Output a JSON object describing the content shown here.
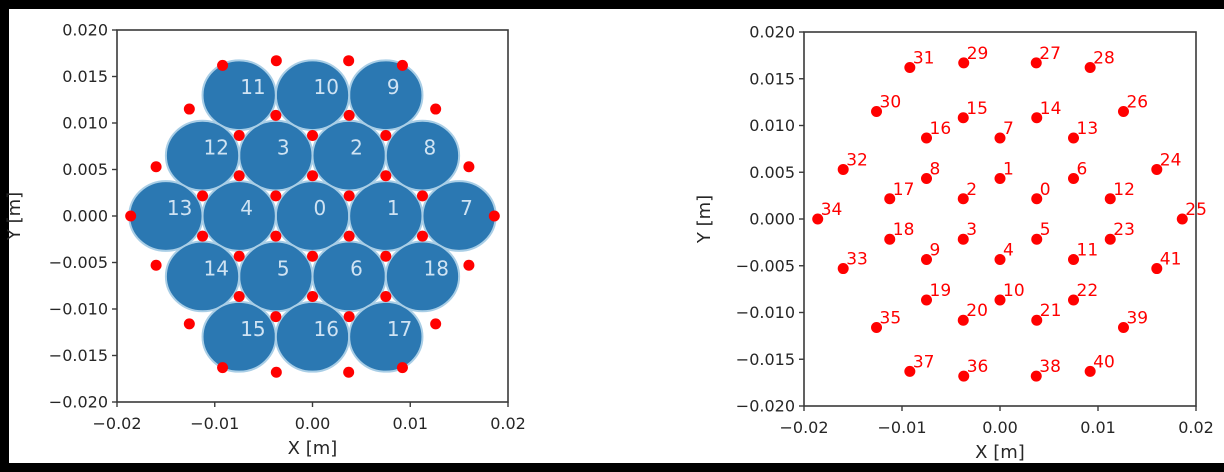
{
  "figure": {
    "background": "#ffffff",
    "border_color": "#000000",
    "axes_color": "#3a3a3a",
    "tick_text_color": "#262626"
  },
  "chart_data": [
    {
      "type": "scatter",
      "name": "circle-packing-plot",
      "title": "",
      "xlabel": "X [m]",
      "ylabel": "Y [m]",
      "xlim": [
        -0.02,
        0.02
      ],
      "ylim": [
        -0.02,
        0.02
      ],
      "grid": false,
      "legend": null,
      "xticks": [
        -0.02,
        -0.01,
        0.0,
        0.01,
        0.02
      ],
      "xtick_labels": [
        "−0.02",
        "−0.01",
        "0.00",
        "0.01",
        "0.02"
      ],
      "yticks": [
        0.02,
        0.015,
        0.01,
        0.005,
        0.0,
        -0.005,
        -0.01,
        -0.015,
        -0.02
      ],
      "ytick_labels": [
        "0.020",
        "0.015",
        "0.010",
        "0.005",
        "0.000",
        "−0.005",
        "−0.010",
        "−0.015",
        "−0.020"
      ],
      "series": [
        {
          "name": "hex-circles",
          "marker": "circle",
          "radius_m": 0.00375,
          "fill": "#2b78b2",
          "edge": "#a9cee6",
          "label_color": "#cfe3f3",
          "show_labels": true,
          "points": [
            {
              "label": "0",
              "x": 0.0,
              "y": 0.0
            },
            {
              "label": "1",
              "x": 0.0075,
              "y": 0.0
            },
            {
              "label": "2",
              "x": 0.00375,
              "y": 0.006495
            },
            {
              "label": "3",
              "x": -0.00375,
              "y": 0.006495
            },
            {
              "label": "4",
              "x": -0.0075,
              "y": 0.0
            },
            {
              "label": "5",
              "x": -0.00375,
              "y": -0.006495
            },
            {
              "label": "6",
              "x": 0.00375,
              "y": -0.006495
            },
            {
              "label": "7",
              "x": 0.015,
              "y": 0.0
            },
            {
              "label": "8",
              "x": 0.01125,
              "y": 0.006495
            },
            {
              "label": "9",
              "x": 0.0075,
              "y": 0.01299
            },
            {
              "label": "10",
              "x": 0.0,
              "y": 0.01299
            },
            {
              "label": "11",
              "x": -0.0075,
              "y": 0.01299
            },
            {
              "label": "12",
              "x": -0.01125,
              "y": 0.006495
            },
            {
              "label": "13",
              "x": -0.015,
              "y": 0.0
            },
            {
              "label": "14",
              "x": -0.01125,
              "y": -0.006495
            },
            {
              "label": "15",
              "x": -0.0075,
              "y": -0.01299
            },
            {
              "label": "16",
              "x": 0.0,
              "y": -0.01299
            },
            {
              "label": "17",
              "x": 0.0075,
              "y": -0.01299
            },
            {
              "label": "18",
              "x": 0.01125,
              "y": -0.006495
            }
          ]
        },
        {
          "name": "interstitial-red-dots",
          "marker": "dot",
          "color": "#ff0000",
          "show_labels": false,
          "points_ref": "red_points"
        }
      ]
    },
    {
      "type": "scatter",
      "name": "labeled-points-plot",
      "title": "",
      "xlabel": "X [m]",
      "ylabel": "Y [m]",
      "xlim": [
        -0.02,
        0.02
      ],
      "ylim": [
        -0.02,
        0.02
      ],
      "grid": false,
      "legend": null,
      "xticks": [
        -0.02,
        -0.01,
        0.0,
        0.01,
        0.02
      ],
      "xtick_labels": [
        "−0.02",
        "−0.01",
        "0.00",
        "0.01",
        "0.02"
      ],
      "yticks": [
        0.02,
        0.015,
        0.01,
        0.005,
        0.0,
        -0.005,
        -0.01,
        -0.015,
        -0.02
      ],
      "ytick_labels": [
        "0.020",
        "0.015",
        "0.010",
        "0.005",
        "0.000",
        "−0.005",
        "−0.010",
        "−0.015",
        "−0.020"
      ],
      "series": [
        {
          "name": "labeled-red-dots",
          "marker": "dot",
          "color": "#ff0000",
          "label_color": "#ff0000",
          "show_labels": true,
          "points_ref": "red_points"
        }
      ]
    }
  ],
  "red_points": [
    {
      "label": "0",
      "x": 0.00375,
      "y": 0.002165
    },
    {
      "label": "1",
      "x": 0.0,
      "y": 0.00433
    },
    {
      "label": "2",
      "x": -0.00375,
      "y": 0.002165
    },
    {
      "label": "3",
      "x": -0.00375,
      "y": -0.002165
    },
    {
      "label": "4",
      "x": 0.0,
      "y": -0.00433
    },
    {
      "label": "5",
      "x": 0.00375,
      "y": -0.002165
    },
    {
      "label": "6",
      "x": 0.0075,
      "y": 0.00433
    },
    {
      "label": "7",
      "x": 0.0,
      "y": 0.00866
    },
    {
      "label": "8",
      "x": -0.0075,
      "y": 0.00433
    },
    {
      "label": "9",
      "x": -0.0075,
      "y": -0.00433
    },
    {
      "label": "10",
      "x": 0.0,
      "y": -0.00866
    },
    {
      "label": "11",
      "x": 0.0075,
      "y": -0.00433
    },
    {
      "label": "12",
      "x": 0.01125,
      "y": 0.002165
    },
    {
      "label": "13",
      "x": 0.0075,
      "y": 0.00866
    },
    {
      "label": "14",
      "x": 0.00375,
      "y": 0.010825
    },
    {
      "label": "15",
      "x": -0.00375,
      "y": 0.010825
    },
    {
      "label": "16",
      "x": -0.0075,
      "y": 0.00866
    },
    {
      "label": "17",
      "x": -0.01125,
      "y": 0.002165
    },
    {
      "label": "18",
      "x": -0.01125,
      "y": -0.002165
    },
    {
      "label": "19",
      "x": -0.0075,
      "y": -0.00866
    },
    {
      "label": "20",
      "x": -0.00375,
      "y": -0.010825
    },
    {
      "label": "21",
      "x": 0.00375,
      "y": -0.010825
    },
    {
      "label": "22",
      "x": 0.0075,
      "y": -0.00866
    },
    {
      "label": "23",
      "x": 0.01125,
      "y": -0.002165
    },
    {
      "label": "24",
      "x": 0.016,
      "y": 0.0053
    },
    {
      "label": "25",
      "x": 0.0186,
      "y": 0.0
    },
    {
      "label": "26",
      "x": 0.0126,
      "y": 0.0115
    },
    {
      "label": "27",
      "x": 0.0037,
      "y": 0.0167
    },
    {
      "label": "28",
      "x": 0.0092,
      "y": 0.0162
    },
    {
      "label": "29",
      "x": -0.0037,
      "y": 0.0167
    },
    {
      "label": "30",
      "x": -0.0126,
      "y": 0.0115
    },
    {
      "label": "31",
      "x": -0.0092,
      "y": 0.0162
    },
    {
      "label": "32",
      "x": -0.016,
      "y": 0.0053
    },
    {
      "label": "33",
      "x": -0.016,
      "y": -0.0053
    },
    {
      "label": "34",
      "x": -0.0186,
      "y": 0.0
    },
    {
      "label": "35",
      "x": -0.0126,
      "y": -0.0116
    },
    {
      "label": "36",
      "x": -0.0037,
      "y": -0.0168
    },
    {
      "label": "37",
      "x": -0.0092,
      "y": -0.0163
    },
    {
      "label": "38",
      "x": 0.0037,
      "y": -0.0168
    },
    {
      "label": "39",
      "x": 0.0126,
      "y": -0.0116
    },
    {
      "label": "40",
      "x": 0.0092,
      "y": -0.0163
    },
    {
      "label": "41",
      "x": 0.016,
      "y": -0.0053
    }
  ]
}
